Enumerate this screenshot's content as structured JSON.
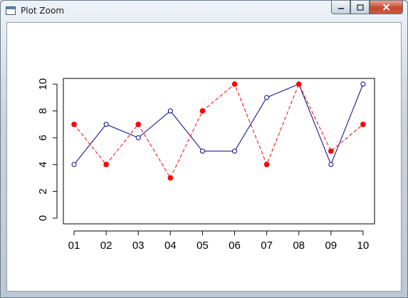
{
  "window": {
    "title": "Plot Zoom",
    "app_icon": "window-icon",
    "controls": {
      "minimize": "minimize-icon",
      "maximize": "maximize-icon",
      "close": "close-icon"
    }
  },
  "chart_data": {
    "type": "line",
    "categories": [
      "01",
      "02",
      "03",
      "04",
      "05",
      "06",
      "07",
      "08",
      "09",
      "10"
    ],
    "ylim": [
      0,
      10
    ],
    "yticks": [
      "0",
      "2",
      "4",
      "6",
      "8",
      "10"
    ],
    "grid": false,
    "series": [
      {
        "values": [
          4,
          7,
          6,
          8,
          5,
          5,
          9,
          10,
          4,
          10
        ],
        "color": "#00008b",
        "line_style": "solid",
        "marker": "open-circle"
      },
      {
        "values": [
          7,
          4,
          7,
          3,
          8,
          10,
          4,
          10,
          5,
          7
        ],
        "color": "#ff0000",
        "line_style": "dashed",
        "marker": "filled-circle"
      }
    ]
  }
}
